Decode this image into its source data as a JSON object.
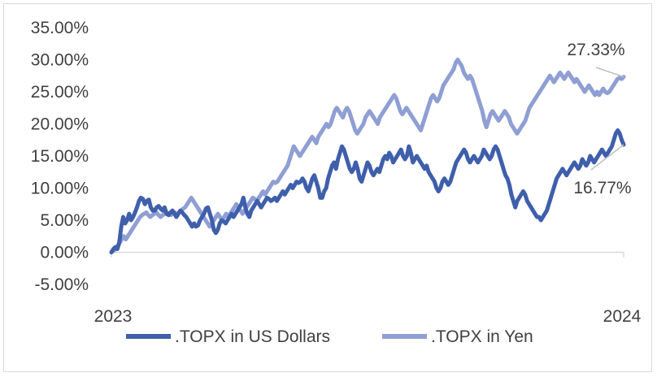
{
  "chart_data": {
    "type": "line",
    "x_start_label": "2023",
    "x_end_label": "2024",
    "ylim": [
      -5,
      35
    ],
    "yticks": [
      35,
      30,
      25,
      20,
      15,
      10,
      5,
      0,
      -5
    ],
    "ytick_labels": [
      "35.00%",
      "30.00%",
      "25.00%",
      "20.00%",
      "15.00%",
      "10.00%",
      "5.00%",
      "0.00%",
      "-5.00%"
    ],
    "grid": false,
    "legend_position": "bottom",
    "series": [
      {
        "name": ".TOPX in US Dollars",
        "color": "#3f5fab",
        "values": [
          0.0,
          0.5,
          0.8,
          0.5,
          1.5,
          4.0,
          5.5,
          4.5,
          5.0,
          6.0,
          5.0,
          5.5,
          6.2,
          7.0,
          8.0,
          8.5,
          8.3,
          7.5,
          8.0,
          8.2,
          7.0,
          6.5,
          6.5,
          7.0,
          7.2,
          6.8,
          6.5,
          7.0,
          6.0,
          5.8,
          6.2,
          6.5,
          6.0,
          5.5,
          6.0,
          6.5,
          6.2,
          5.8,
          5.5,
          5.0,
          4.5,
          4.0,
          4.5,
          4.0,
          4.2,
          5.0,
          5.5,
          6.0,
          6.8,
          7.0,
          6.0,
          5.0,
          3.5,
          3.0,
          3.5,
          4.5,
          5.0,
          4.8,
          4.5,
          5.0,
          5.5,
          6.0,
          5.5,
          6.0,
          6.5,
          7.0,
          7.5,
          8.5,
          7.0,
          6.0,
          5.5,
          6.5,
          7.0,
          7.5,
          8.0,
          7.5,
          7.0,
          7.5,
          8.0,
          8.5,
          8.3,
          8.0,
          8.2,
          8.5,
          8.0,
          8.5,
          9.0,
          9.5,
          9.0,
          9.5,
          10.0,
          10.5,
          10.0,
          10.5,
          11.0,
          10.8,
          11.0,
          11.5,
          11.0,
          10.0,
          9.5,
          10.5,
          11.5,
          12.0,
          11.0,
          10.0,
          8.5,
          8.5,
          9.5,
          10.0,
          11.5,
          12.5,
          13.5,
          14.0,
          13.0,
          14.5,
          15.5,
          16.5,
          16.0,
          15.0,
          14.0,
          13.0,
          12.5,
          13.0,
          14.0,
          13.0,
          11.5,
          11.0,
          12.0,
          13.0,
          14.0,
          13.5,
          12.5,
          12.0,
          12.5,
          13.0,
          12.5,
          13.5,
          14.5,
          15.0,
          14.5,
          15.5,
          15.0,
          14.0,
          14.5,
          15.0,
          15.5,
          16.0,
          15.0,
          14.5,
          15.0,
          16.5,
          15.5,
          14.0,
          14.5,
          15.0,
          14.5,
          14.0,
          13.5,
          13.0,
          13.5,
          12.5,
          12.0,
          11.5,
          11.0,
          10.0,
          9.5,
          10.0,
          11.0,
          11.5,
          11.0,
          10.5,
          11.0,
          12.0,
          13.0,
          14.0,
          14.5,
          15.0,
          15.5,
          16.0,
          15.5,
          14.5,
          14.0,
          14.5,
          15.0,
          14.5,
          14.0,
          14.5,
          15.0,
          16.0,
          15.5,
          15.0,
          14.5,
          15.0,
          16.0,
          16.5,
          16.0,
          15.0,
          14.0,
          13.0,
          12.0,
          11.5,
          10.5,
          9.0,
          8.0,
          7.0,
          8.0,
          8.5,
          9.0,
          9.5,
          9.0,
          8.0,
          7.5,
          7.0,
          6.5,
          6.0,
          5.5,
          5.5,
          5.0,
          5.5,
          6.0,
          6.5,
          7.5,
          8.5,
          9.5,
          10.5,
          11.5,
          12.0,
          12.5,
          13.0,
          12.5,
          12.0,
          12.5,
          13.0,
          13.5,
          14.0,
          13.5,
          13.0,
          13.5,
          14.5,
          14.0,
          13.5,
          14.0,
          15.0,
          14.5,
          14.0,
          14.5,
          15.0,
          15.5,
          16.0,
          15.5,
          15.0,
          15.5,
          16.0,
          16.5,
          17.5,
          18.5,
          19.0,
          18.5,
          17.5,
          16.77
        ]
      },
      {
        "name": ".TOPX in Yen",
        "color": "#8f9fd4",
        "values": [
          0.0,
          0.2,
          0.5,
          1.0,
          1.5,
          2.0,
          2.5,
          2.0,
          2.5,
          3.0,
          3.5,
          4.0,
          4.5,
          5.0,
          5.5,
          5.8,
          6.0,
          6.2,
          5.8,
          5.5,
          5.8,
          6.0,
          6.2,
          5.8,
          5.5,
          5.8,
          6.0,
          6.2,
          6.0,
          5.8,
          6.0,
          6.2,
          6.0,
          6.2,
          6.5,
          6.8,
          7.0,
          7.5,
          8.0,
          8.5,
          8.0,
          7.5,
          7.0,
          6.5,
          6.0,
          5.5,
          5.0,
          4.5,
          4.0,
          4.5,
          5.0,
          5.5,
          6.0,
          5.5,
          5.0,
          5.5,
          6.0,
          5.5,
          6.0,
          6.5,
          7.0,
          7.5,
          7.0,
          6.5,
          6.0,
          6.5,
          7.0,
          7.5,
          8.0,
          8.5,
          8.3,
          8.0,
          8.5,
          9.0,
          9.5,
          9.0,
          9.5,
          10.0,
          10.5,
          11.0,
          10.8,
          11.0,
          11.5,
          12.0,
          12.5,
          13.0,
          13.5,
          14.5,
          15.5,
          16.5,
          16.0,
          15.5,
          15.0,
          15.5,
          16.0,
          16.5,
          17.0,
          17.5,
          18.0,
          17.5,
          17.0,
          18.0,
          18.5,
          19.0,
          19.5,
          20.0,
          19.5,
          20.0,
          21.0,
          22.0,
          22.5,
          22.0,
          21.5,
          21.0,
          22.0,
          22.5,
          22.0,
          21.0,
          20.0,
          19.0,
          18.5,
          19.0,
          19.5,
          20.0,
          21.0,
          21.5,
          22.0,
          21.5,
          21.0,
          20.5,
          20.0,
          21.0,
          21.5,
          22.0,
          22.5,
          23.0,
          23.5,
          24.0,
          24.5,
          24.0,
          23.0,
          22.0,
          21.5,
          22.0,
          22.5,
          22.0,
          21.5,
          21.0,
          20.5,
          20.0,
          19.5,
          19.0,
          20.0,
          21.0,
          22.0,
          23.0,
          24.0,
          24.5,
          24.0,
          23.5,
          24.0,
          25.0,
          26.0,
          26.5,
          27.0,
          27.5,
          28.0,
          28.5,
          29.5,
          30.0,
          29.5,
          29.0,
          28.0,
          27.5,
          27.0,
          27.5,
          27.0,
          26.0,
          25.0,
          24.0,
          23.0,
          22.0,
          20.5,
          19.5,
          20.5,
          21.5,
          22.0,
          21.5,
          21.0,
          20.5,
          21.0,
          21.5,
          22.0,
          21.5,
          21.0,
          20.0,
          19.5,
          19.0,
          18.5,
          19.0,
          19.5,
          20.0,
          20.5,
          21.5,
          22.5,
          23.0,
          23.5,
          24.0,
          24.5,
          25.0,
          25.5,
          26.0,
          26.5,
          27.0,
          27.5,
          27.0,
          26.5,
          27.0,
          27.5,
          28.0,
          27.5,
          27.0,
          27.5,
          28.0,
          27.5,
          27.0,
          26.5,
          27.0,
          26.5,
          26.0,
          25.5,
          25.0,
          25.5,
          26.0,
          25.5,
          25.0,
          24.5,
          25.0,
          24.5,
          25.0,
          25.5,
          25.0,
          24.8,
          25.0,
          25.5,
          26.0,
          26.5,
          27.0,
          27.2,
          27.0,
          27.33
        ]
      }
    ],
    "annotations": [
      {
        "text": "27.33%",
        "series": ".TOPX in Yen"
      },
      {
        "text": "16.77%",
        "series": ".TOPX in US Dollars"
      }
    ]
  }
}
